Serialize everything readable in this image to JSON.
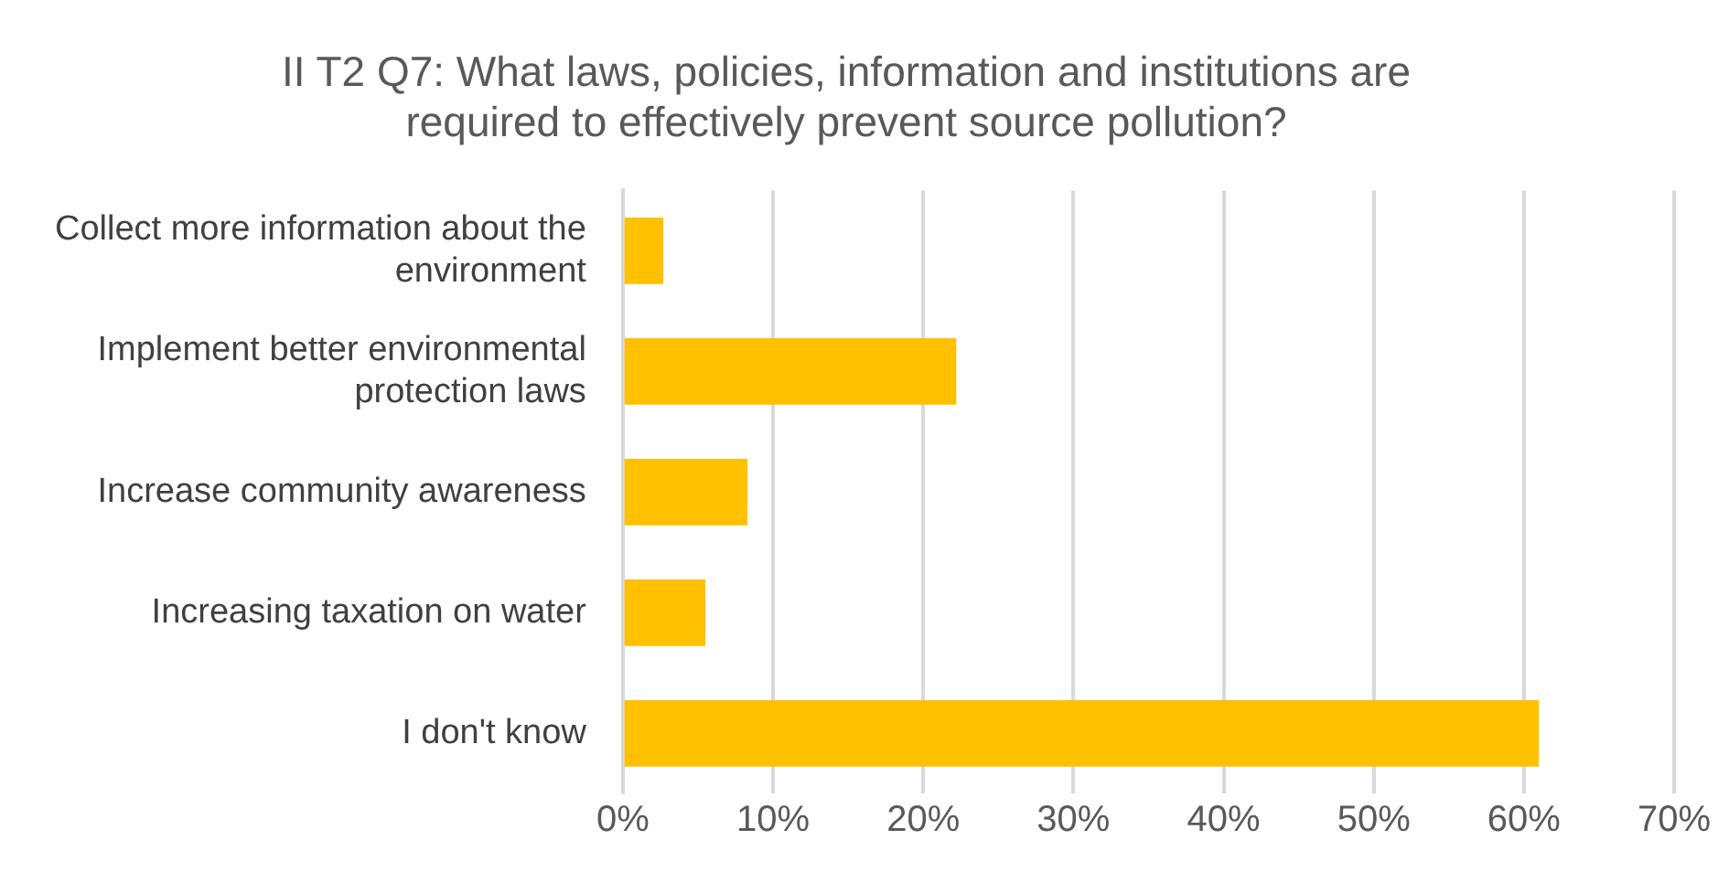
{
  "chart_data": {
    "type": "bar",
    "orientation": "horizontal",
    "title": "II T2 Q7: What laws, policies, information and institutions are required to effectively prevent source pollution?",
    "categories": [
      "Collect more information about the environment",
      "Implement better environmental protection laws",
      "Increase community awareness",
      "Increasing taxation on water",
      "I don't know"
    ],
    "values": [
      2.7,
      22.2,
      8.3,
      5.5,
      61.0
    ],
    "color": "#ffc000",
    "xlim": [
      0,
      70
    ],
    "xticks": [
      {
        "value": 0,
        "label": "0%"
      },
      {
        "value": 10,
        "label": "10%"
      },
      {
        "value": 20,
        "label": "20%"
      },
      {
        "value": 30,
        "label": "30%"
      },
      {
        "value": 40,
        "label": "40%"
      },
      {
        "value": 50,
        "label": "50%"
      },
      {
        "value": 60,
        "label": "60%"
      },
      {
        "value": 70,
        "label": "70%"
      }
    ],
    "grid": "x",
    "legend": false
  }
}
